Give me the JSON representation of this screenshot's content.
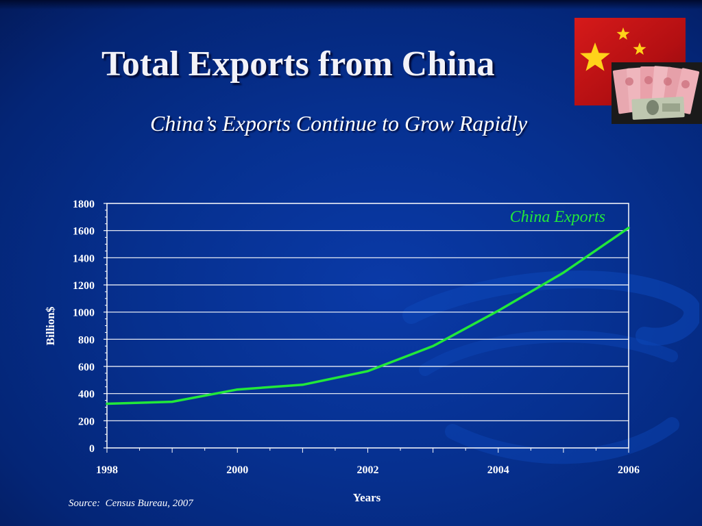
{
  "slide": {
    "title": "Total Exports from China",
    "subtitle": "China’s Exports Continue to Grow Rapidly",
    "source": "Source:  Census Bureau, 2007"
  },
  "images": {
    "flag": "china-flag-photo",
    "money": "yuan-and-dollar-banknotes-photo"
  },
  "colors": {
    "background": "#06308f",
    "line": "#22e83a",
    "grid": "#ffffff",
    "text": "#ffffff"
  },
  "chart_data": {
    "type": "line",
    "title": "",
    "xlabel": "Years",
    "ylabel": "Billion$",
    "x": [
      1998,
      1999,
      2000,
      2001,
      2002,
      2003,
      2004,
      2005,
      2006
    ],
    "series": [
      {
        "name": "China Exports",
        "values": [
          325,
          340,
          430,
          465,
          565,
          750,
          1010,
          1290,
          1620
        ]
      }
    ],
    "xticks": [
      "1998",
      "2000",
      "2002",
      "2004",
      "2006"
    ],
    "yticks": [
      "0",
      "200",
      "400",
      "600",
      "800",
      "1000",
      "1200",
      "1400",
      "1600",
      "1800"
    ],
    "xlim": [
      1998,
      2006
    ],
    "ylim": [
      0,
      1800
    ],
    "grid": "horizontal",
    "legend": "top-right inline label"
  }
}
